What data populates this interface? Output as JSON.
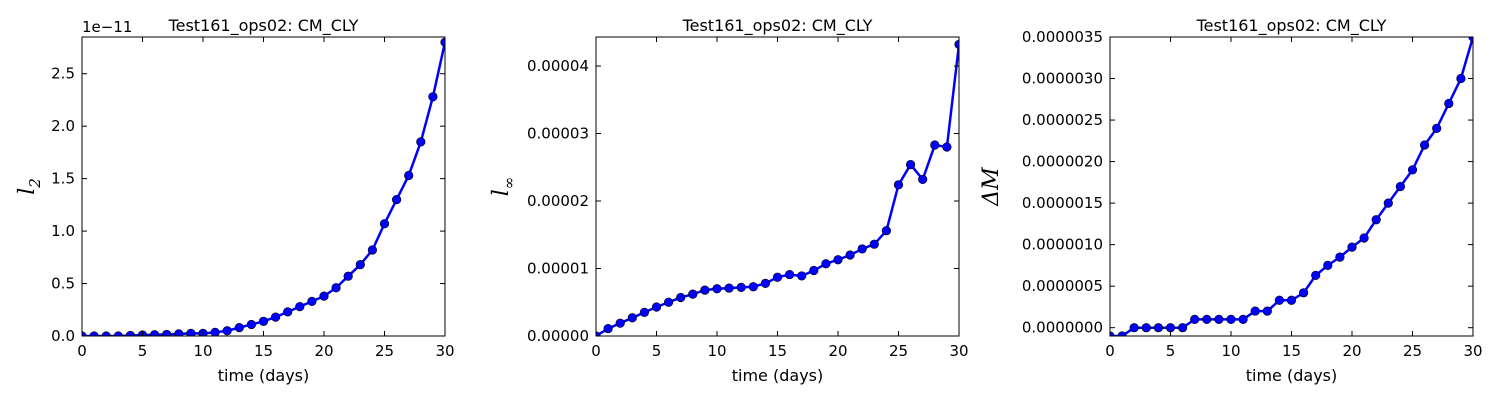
{
  "chart_data": [
    {
      "type": "line",
      "title": "Test161_ops02: CM_CLY",
      "xlabel": "time (days)",
      "ylabel": "l",
      "ylabel_sub": "2",
      "y_multiplier": "1e−11",
      "xlim": [
        0,
        30
      ],
      "ylim": [
        0,
        2.85
      ],
      "xticks": [
        0,
        5,
        10,
        15,
        20,
        25,
        30
      ],
      "yticks": [
        0,
        0.5,
        1.0,
        1.5,
        2.0,
        2.5
      ],
      "ytick_labels": [
        "0.0",
        "0.5",
        "1.0",
        "1.5",
        "2.0",
        "2.5"
      ],
      "grid": false,
      "line_color": "#0000ff",
      "x": [
        0,
        1,
        2,
        3,
        4,
        5,
        6,
        7,
        8,
        9,
        10,
        11,
        12,
        13,
        14,
        15,
        16,
        17,
        18,
        19,
        20,
        21,
        22,
        23,
        24,
        25,
        26,
        27,
        28,
        29,
        30
      ],
      "y": [
        0,
        0,
        0,
        0,
        0.005,
        0.01,
        0.012,
        0.015,
        0.02,
        0.025,
        0.025,
        0.035,
        0.05,
        0.08,
        0.11,
        0.14,
        0.18,
        0.23,
        0.28,
        0.33,
        0.38,
        0.46,
        0.57,
        0.68,
        0.82,
        1.07,
        1.3,
        1.53,
        1.85,
        2.28,
        2.8
      ]
    },
    {
      "type": "line",
      "title": "Test161_ops02: CM_CLY",
      "xlabel": "time (days)",
      "ylabel": "l",
      "ylabel_sub": "∞",
      "y_multiplier": "",
      "xlim": [
        0,
        30
      ],
      "ylim": [
        0,
        4.43e-05
      ],
      "xticks": [
        0,
        5,
        10,
        15,
        20,
        25,
        30
      ],
      "yticks": [
        0,
        1e-05,
        2e-05,
        3e-05,
        4e-05
      ],
      "ytick_labels": [
        "0.00000",
        "0.00001",
        "0.00002",
        "0.00003",
        "0.00004"
      ],
      "grid": false,
      "line_color": "#0000ff",
      "x": [
        0,
        1,
        2,
        3,
        4,
        5,
        6,
        7,
        8,
        9,
        10,
        11,
        12,
        13,
        14,
        15,
        16,
        17,
        18,
        19,
        20,
        21,
        22,
        23,
        24,
        25,
        26,
        27,
        28,
        29,
        30
      ],
      "y": [
        0,
        1.1e-06,
        1.9e-06,
        2.7e-06,
        3.5e-06,
        4.3e-06,
        5e-06,
        5.7e-06,
        6.2e-06,
        6.8e-06,
        7e-06,
        7.1e-06,
        7.2e-06,
        7.3e-06,
        7.8e-06,
        8.7e-06,
        9.1e-06,
        8.9e-06,
        9.7e-06,
        1.07e-05,
        1.13e-05,
        1.2e-05,
        1.29e-05,
        1.36e-05,
        1.56e-05,
        2.24e-05,
        2.54e-05,
        2.32e-05,
        2.83e-05,
        2.8e-05,
        4.32e-05
      ]
    },
    {
      "type": "line",
      "title": "Test161_ops02: CM_CLY",
      "xlabel": "time (days)",
      "ylabel": "ΔM",
      "ylabel_sub": "",
      "y_multiplier": "",
      "xlim": [
        0,
        30
      ],
      "ylim": [
        -1e-07,
        3.5e-06
      ],
      "xticks": [
        0,
        5,
        10,
        15,
        20,
        25,
        30
      ],
      "yticks": [
        0,
        5e-07,
        1e-06,
        1.5e-06,
        2e-06,
        2.5e-06,
        3e-06,
        3.5e-06
      ],
      "ytick_labels": [
        "0.0000000",
        "0.0000005",
        "0.0000010",
        "0.0000015",
        "0.0000020",
        "0.0000025",
        "0.0000030",
        "0.0000035"
      ],
      "grid": false,
      "line_color": "#0000ff",
      "x": [
        0,
        1,
        2,
        3,
        4,
        5,
        6,
        7,
        8,
        9,
        10,
        11,
        12,
        13,
        14,
        15,
        16,
        17,
        18,
        19,
        20,
        21,
        22,
        23,
        24,
        25,
        26,
        27,
        28,
        29,
        30
      ],
      "y": [
        -1e-07,
        -1e-07,
        0,
        0,
        0,
        0,
        0,
        1e-07,
        1e-07,
        1e-07,
        1e-07,
        1e-07,
        2e-07,
        2e-07,
        3.3e-07,
        3.3e-07,
        4.2e-07,
        6.3e-07,
        7.5e-07,
        8.5e-07,
        9.7e-07,
        1.08e-06,
        1.3e-06,
        1.5e-06,
        1.7e-06,
        1.9e-06,
        2.2e-06,
        2.4e-06,
        2.7e-06,
        3e-06,
        3.5e-06
      ]
    }
  ]
}
